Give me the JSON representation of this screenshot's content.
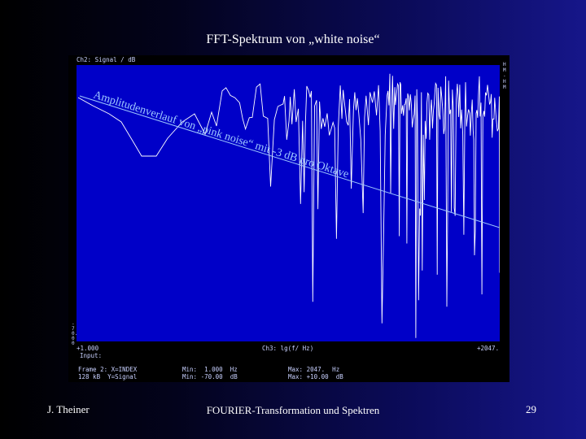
{
  "slide": {
    "title": "FFT-Spektrum von „white noise“",
    "footer_left": "J. Theiner",
    "footer_center": "FOURIER-Transformation und Spektren",
    "page_number": "29"
  },
  "analyzer": {
    "header_left": "Ch2: Signal / dB",
    "side_label": "ﬂ¼¤ - ¤ I¤",
    "y_top": "",
    "y_bottom": "-70.00",
    "x_left": "+1.000",
    "x_center": "Ch3: lg(f/ Hz)",
    "x_right": "+2047.",
    "input_label": "Input:",
    "status": {
      "row1_col1": "Frame 2: X=INDEX",
      "row1_col2": "Min:  1.000  Hz",
      "row1_col3": "Max: 2047.  Hz",
      "row2_col1": "128 kB  Y=Signal",
      "row2_col2": "Min: -70.00  dB",
      "row2_col3": "Max: +10.00  dB"
    },
    "annotation": "Amplitudenverlauf von „pink noise“ mit -3 dB pro Oktave",
    "colors": {
      "plot_background": "#0000c8",
      "trace": "#ffffff",
      "annotation": "#9ec8ff"
    }
  }
}
